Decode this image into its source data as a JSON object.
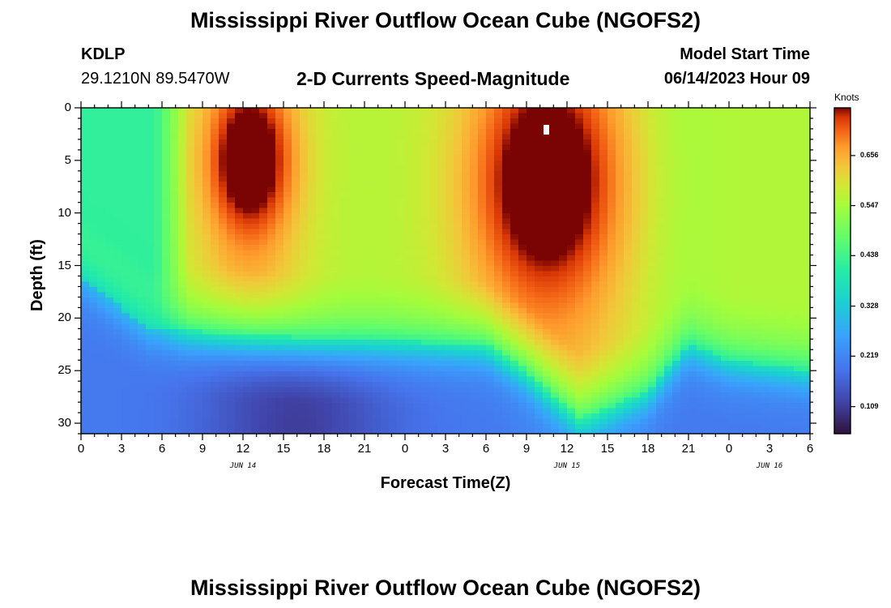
{
  "header": {
    "title": "Mississippi River Outflow Ocean Cube (NGOFS2)",
    "station_id": "KDLP",
    "station_coords": "29.1210N  89.5470W",
    "subtitle": "2-D Currents Speed-Magnitude",
    "model_start_label": "Model Start Time",
    "model_start_value": "06/14/2023 Hour 09"
  },
  "footer": {
    "title": "Mississippi River Outflow Ocean Cube (NGOFS2)"
  },
  "chart_data": {
    "type": "heatmap",
    "title": "2-D Currents Speed-Magnitude",
    "xlabel": "Forecast Time(Z)",
    "ylabel": "Depth (ft)",
    "x_ticks": [
      "0",
      "3",
      "6",
      "9",
      "12",
      "15",
      "18",
      "21",
      "0",
      "3",
      "6",
      "9",
      "12",
      "15",
      "18",
      "21",
      "0",
      "3",
      "6"
    ],
    "x_range_hours": [
      0,
      54
    ],
    "y_ticks": [
      "0",
      "5",
      "10",
      "15",
      "20",
      "25",
      "30"
    ],
    "y_range_ft": [
      0,
      31
    ],
    "date_labels": [
      {
        "label": "JUN 14",
        "hour": 12
      },
      {
        "label": "JUN 15",
        "hour": 36
      },
      {
        "label": "JUN 16",
        "hour": 51
      }
    ],
    "colorbar": {
      "unit": "Knots",
      "ticks": [
        "0.656",
        "0.547",
        "0.438",
        "0.328",
        "0.219",
        "0.109"
      ],
      "tick_values": [
        0.656,
        0.547,
        0.438,
        0.328,
        0.219,
        0.109
      ],
      "range": [
        0.05,
        0.76
      ]
    },
    "field": {
      "description": "Current speed (knots) versus forecast hour and depth",
      "surface_maxima": [
        {
          "hour": 12.5,
          "depth_ft": 4,
          "speed": 0.74
        },
        {
          "hour": 34.5,
          "depth_ft": 6,
          "speed": 0.75
        }
      ],
      "interface_depth_ft": [
        {
          "hour": 0,
          "depth": 16
        },
        {
          "hour": 5,
          "depth": 21
        },
        {
          "hour": 12,
          "depth": 21.5
        },
        {
          "hour": 18,
          "depth": 22
        },
        {
          "hour": 30,
          "depth": 22.5
        },
        {
          "hour": 33,
          "depth": 25
        },
        {
          "hour": 37,
          "depth": 29.5
        },
        {
          "hour": 42,
          "depth": 27
        },
        {
          "hour": 45,
          "depth": 22.5
        },
        {
          "hour": 48,
          "depth": 24
        },
        {
          "hour": 54,
          "depth": 25
        }
      ],
      "deep_minimum": {
        "hour": 16,
        "depth_ft": 30,
        "speed": 0.08
      }
    }
  }
}
